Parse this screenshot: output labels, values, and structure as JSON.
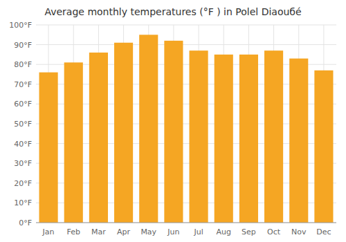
{
  "chart_data": {
    "type": "bar",
    "title": "Average monthly temperatures (°F ) in Polel Diaouбé",
    "categories": [
      "Jan",
      "Feb",
      "Mar",
      "Apr",
      "May",
      "Jun",
      "Jul",
      "Aug",
      "Sep",
      "Oct",
      "Nov",
      "Dec"
    ],
    "values": [
      76,
      81,
      86,
      91,
      95,
      92,
      87,
      85,
      85,
      87,
      83,
      77
    ],
    "color": "#F5A623",
    "ylim": [
      0,
      100
    ],
    "yticks": [
      {
        "value": 0,
        "label": "0°F"
      },
      {
        "value": 10,
        "label": "10°F"
      },
      {
        "value": 20,
        "label": "20°F"
      },
      {
        "value": 30,
        "label": "30°F"
      },
      {
        "value": 40,
        "label": "40°F"
      },
      {
        "value": 50,
        "label": "50°F"
      },
      {
        "value": 60,
        "label": "60°F"
      },
      {
        "value": 70,
        "label": "70°F"
      },
      {
        "value": 80,
        "label": "80°F"
      },
      {
        "value": 90,
        "label": "90°F"
      },
      {
        "value": 100,
        "label": "100°F"
      }
    ],
    "grid": true
  }
}
